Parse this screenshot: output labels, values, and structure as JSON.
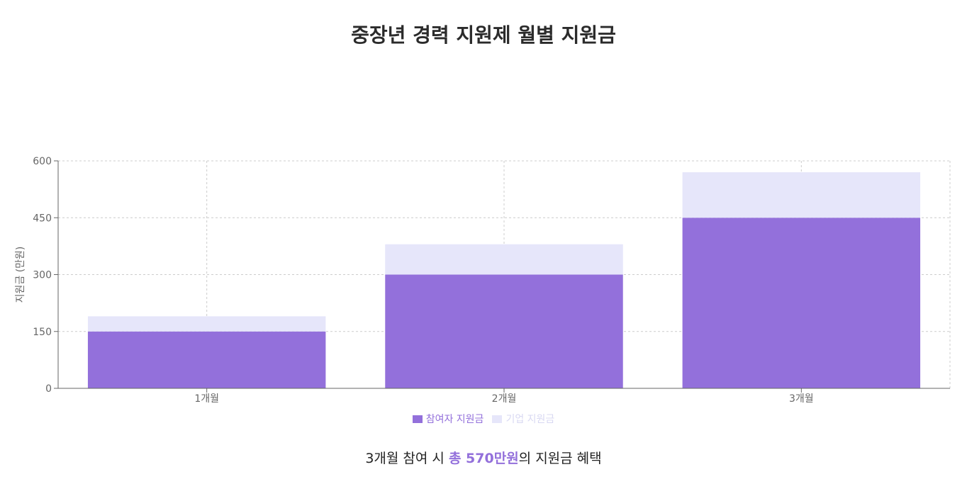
{
  "title": "중장년 경력 지원제 월별 지원금",
  "chart_data": {
    "type": "bar",
    "stacked": true,
    "categories": [
      "1개월",
      "2개월",
      "3개월"
    ],
    "series": [
      {
        "name": "참여자 지원금",
        "values": [
          150,
          300,
          450
        ],
        "color": "#9370db"
      },
      {
        "name": "기업 지원금",
        "values": [
          40,
          80,
          120
        ],
        "color": "#e6e6fa"
      }
    ],
    "totals": [
      190,
      380,
      570
    ],
    "xlabel": "",
    "ylabel": "지원금 (만원)",
    "ylim": [
      0,
      600
    ],
    "yticks": [
      "0",
      "150",
      "300",
      "450",
      "600"
    ],
    "grid": true,
    "legend_position": "bottom"
  },
  "legend": {
    "participant": "참여자 지원금",
    "company": "기업 지원금",
    "participant_color": "#9370db",
    "company_color": "#e6e6fa"
  },
  "summary": {
    "prefix": "3개월 참여 시 ",
    "highlight": "총 570만원",
    "suffix": "의 지원금 혜택"
  }
}
